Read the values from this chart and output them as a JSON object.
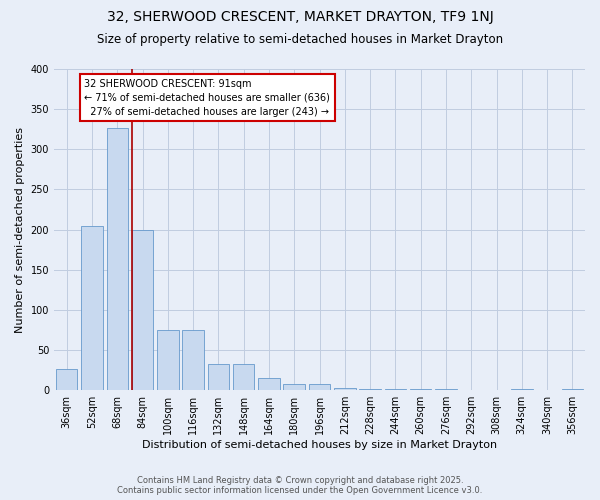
{
  "title": "32, SHERWOOD CRESCENT, MARKET DRAYTON, TF9 1NJ",
  "subtitle": "Size of property relative to semi-detached houses in Market Drayton",
  "xlabel": "Distribution of semi-detached houses by size in Market Drayton",
  "ylabel": "Number of semi-detached properties",
  "bins": [
    "36sqm",
    "52sqm",
    "68sqm",
    "84sqm",
    "100sqm",
    "116sqm",
    "132sqm",
    "148sqm",
    "164sqm",
    "180sqm",
    "196sqm",
    "212sqm",
    "228sqm",
    "244sqm",
    "260sqm",
    "276sqm",
    "292sqm",
    "308sqm",
    "324sqm",
    "340sqm",
    "356sqm"
  ],
  "bar_values": [
    27,
    204,
    327,
    200,
    75,
    75,
    33,
    33,
    15,
    8,
    8,
    3,
    2,
    1,
    1,
    1,
    0,
    0,
    1,
    0,
    2
  ],
  "bar_color": "#c8d9ef",
  "bar_edge_color": "#6699cc",
  "property_label": "32 SHERWOOD CRESCENT: 91sqm",
  "pct_smaller": 71,
  "count_smaller": 636,
  "pct_larger": 27,
  "count_larger": 243,
  "vline_color": "#aa0000",
  "annotation_box_color": "#cc0000",
  "background_color": "#e8eef8",
  "grid_color": "#d0d8e8",
  "ylim": [
    0,
    400
  ],
  "yticks": [
    0,
    50,
    100,
    150,
    200,
    250,
    300,
    350,
    400
  ],
  "footer_line1": "Contains HM Land Registry data © Crown copyright and database right 2025.",
  "footer_line2": "Contains public sector information licensed under the Open Government Licence v3.0.",
  "title_fontsize": 10,
  "subtitle_fontsize": 8.5,
  "xlabel_fontsize": 8,
  "ylabel_fontsize": 8,
  "tick_fontsize": 7,
  "annotation_fontsize": 7,
  "footer_fontsize": 6
}
